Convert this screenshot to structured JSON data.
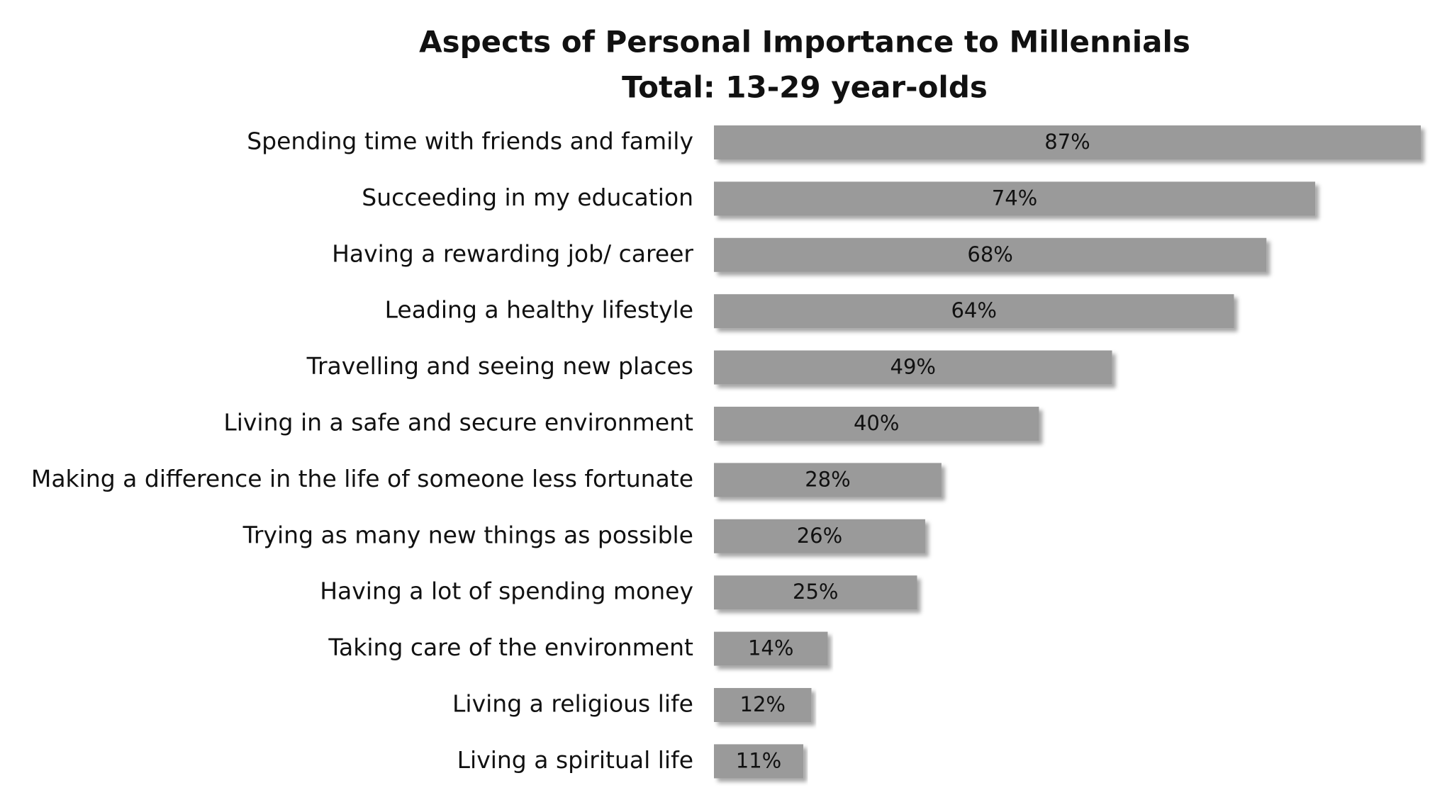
{
  "chart_data": {
    "type": "bar",
    "title": "Aspects of Personal Importance to Millennials",
    "subtitle": "Total: 13-29 year-olds",
    "categories": [
      "Spending time with friends and family",
      "Succeeding in my education",
      "Having a rewarding job/ career",
      "Leading a healthy lifestyle",
      "Travelling and seeing new places",
      "Living in a safe and secure environment",
      "Making a difference in the life of someone less fortunate",
      "Trying as many new things as possible",
      "Having a lot of spending money",
      "Taking care of the environment",
      "Living a religious life",
      "Living a spiritual life"
    ],
    "values": [
      87,
      74,
      68,
      64,
      49,
      40,
      28,
      26,
      25,
      14,
      12,
      11
    ],
    "value_labels": [
      "87%",
      "74%",
      "68%",
      "64%",
      "49%",
      "40%",
      "28%",
      "26%",
      "25%",
      "14%",
      "12%",
      "11%"
    ],
    "color": "#9a9a9a"
  }
}
